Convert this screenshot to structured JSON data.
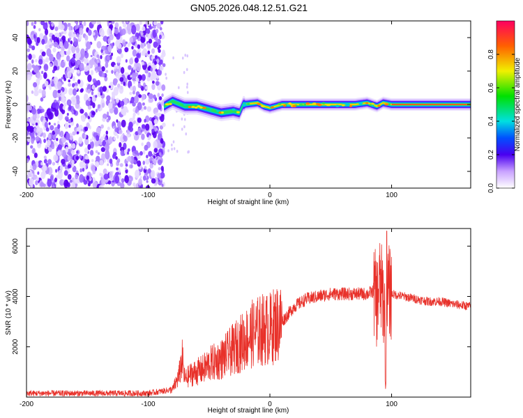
{
  "title": "GN05.2026.048.12.51.G21",
  "chart_data": [
    {
      "type": "heatmap",
      "xlabel": "Height of straight line (km)",
      "ylabel": "Frequency (Hz)",
      "xlim": [
        -200,
        165
      ],
      "ylim": [
        -50,
        50
      ],
      "xticks": [
        -200,
        -100,
        0,
        100
      ],
      "yticks": [
        -40,
        -20,
        0,
        20,
        40
      ],
      "colorbar": {
        "label": "Normalized spectral amplitude",
        "range": [
          0,
          1
        ],
        "ticks": [
          0.0,
          0.2,
          0.4,
          0.6,
          0.8
        ]
      },
      "noise_region": [
        -200,
        -87
      ],
      "ridge": [
        {
          "x": -87,
          "y": -1
        },
        {
          "x": -80,
          "y": 2
        },
        {
          "x": -70,
          "y": -1
        },
        {
          "x": -60,
          "y": -1
        },
        {
          "x": -50,
          "y": -3
        },
        {
          "x": -40,
          "y": -5
        },
        {
          "x": -30,
          "y": -4
        },
        {
          "x": -25,
          "y": -5
        },
        {
          "x": -22,
          "y": 0
        },
        {
          "x": -10,
          "y": 1
        },
        {
          "x": -5,
          "y": -1
        },
        {
          "x": 0,
          "y": -2
        },
        {
          "x": 10,
          "y": 0
        },
        {
          "x": 40,
          "y": 0
        },
        {
          "x": 70,
          "y": 0
        },
        {
          "x": 80,
          "y": 1
        },
        {
          "x": 88,
          "y": -1
        },
        {
          "x": 93,
          "y": 1
        },
        {
          "x": 100,
          "y": 0
        },
        {
          "x": 165,
          "y": 0
        }
      ]
    },
    {
      "type": "line",
      "xlabel": "Height of straight line (km)",
      "ylabel": "SNR (10 * v/v)",
      "xlim": [
        -200,
        165
      ],
      "ylim": [
        0,
        6700
      ],
      "xticks": [
        -200,
        -100,
        0,
        100
      ],
      "yticks": [
        2000,
        4000,
        6000
      ],
      "series": [
        {
          "name": "SNR",
          "color": "#e8312a",
          "x": [
            -200,
            -150,
            -100,
            -80,
            -75,
            -72,
            -70,
            -65,
            -60,
            -55,
            -50,
            -45,
            -40,
            -35,
            -30,
            -25,
            -20,
            -15,
            -10,
            -5,
            0,
            5,
            10,
            15,
            20,
            30,
            40,
            50,
            60,
            70,
            80,
            85,
            88,
            90,
            93,
            95,
            97,
            100,
            110,
            120,
            130,
            140,
            150,
            165
          ],
          "y": [
            150,
            150,
            150,
            300,
            800,
            1500,
            700,
            900,
            1000,
            1100,
            1300,
            1400,
            1500,
            1700,
            1900,
            2100,
            2300,
            2500,
            2600,
            2700,
            2700,
            2900,
            3000,
            3300,
            3600,
            3900,
            4000,
            4100,
            4100,
            4100,
            4100,
            4200,
            3800,
            4500,
            4000,
            3000,
            4200,
            4100,
            4000,
            3900,
            3800,
            3800,
            3700,
            3600
          ]
        }
      ]
    }
  ]
}
